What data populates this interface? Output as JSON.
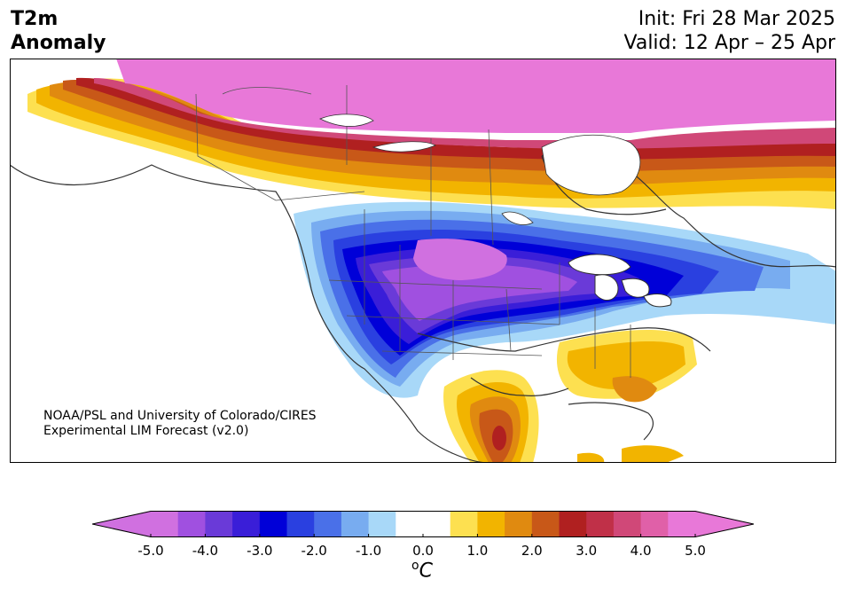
{
  "title": {
    "line1": "T2m",
    "line2": "Anomaly",
    "init": "Init: Fri 28 Mar 2025",
    "valid": "Valid: 12 Apr – 25 Apr"
  },
  "credit": {
    "line1": "NOAA/PSL and University of Colorado/CIRES",
    "line2": "Experimental LIM Forecast (v2.0)"
  },
  "colorbar": {
    "unit_sup": "o",
    "unit_base": "C",
    "ticks": [
      "-5.0",
      "-4.0",
      "-3.0",
      "-2.0",
      "-1.0",
      "0.0",
      "1.0",
      "2.0",
      "3.0",
      "4.0",
      "5.0"
    ],
    "colors": [
      "#d070e0",
      "#a050e0",
      "#6a3ad8",
      "#3a1ed8",
      "#0000d8",
      "#2a40e0",
      "#4a70e8",
      "#78acf0",
      "#a8d8f8",
      "#ffffff",
      "#ffffff",
      "#fde050",
      "#f2b400",
      "#e08a10",
      "#c85818",
      "#b02020",
      "#c03048",
      "#d04878",
      "#e060a8",
      "#e878d8"
    ]
  },
  "regions": {
    "canada_north": "strong warm anomaly",
    "great_basin": "strong cold anomaly",
    "southeast_us": "moderate warm anomaly",
    "mexico": "warm anomaly"
  }
}
